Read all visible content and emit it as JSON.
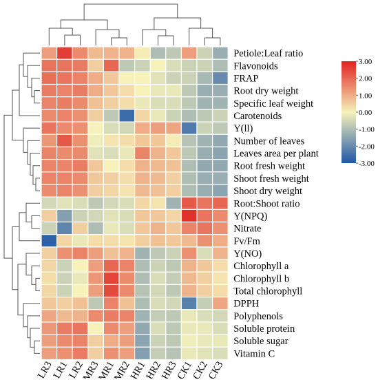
{
  "chart_data": {
    "type": "heatmap",
    "columns": [
      "LR3",
      "LR1",
      "LR2",
      "MR3",
      "MR1",
      "MR2",
      "HR1",
      "HR2",
      "HR3",
      "CK1",
      "CK2",
      "CK3"
    ],
    "rows": [
      "Petiole:Leaf ratio",
      "Flavonoids",
      "FRAP",
      "Root dry weight",
      "Specific leaf weight",
      "Carotenoids",
      "Y(ll)",
      "Number of leaves",
      "Leaves area per plant",
      "Root fresh weight",
      "Shoot fresh weight",
      "Shoot dry weight",
      "Root:Shoot ratio",
      "Y(NPQ)",
      "Nitrate",
      "Fv/Fm",
      "Y(NO)",
      "Chlorophyll a",
      "Chlorophyll b",
      "Total chlorophyll",
      "DPPH",
      "Polyphenols",
      "Soluble protein",
      "Soluble sugar",
      "Vitamin C"
    ],
    "values": [
      [
        1.2,
        2.6,
        1.5,
        0.8,
        0.9,
        0.9,
        0.1,
        -1.0,
        -0.8,
        1.2,
        -0.6,
        -1.3
      ],
      [
        1.8,
        1.8,
        1.7,
        0.5,
        2.0,
        -0.8,
        -0.6,
        0.0,
        -0.4,
        -0.6,
        -0.6,
        -1.0
      ],
      [
        1.9,
        1.8,
        1.6,
        1.0,
        0.6,
        0.0,
        0.0,
        -0.3,
        -0.6,
        -0.6,
        -1.1,
        -2.0
      ],
      [
        1.7,
        1.6,
        1.7,
        1.0,
        0.6,
        0.3,
        0.0,
        -0.2,
        -0.2,
        -0.8,
        -1.3,
        -1.3
      ],
      [
        1.6,
        1.7,
        1.5,
        0.7,
        0.5,
        0.3,
        -0.2,
        -0.4,
        -0.4,
        -0.8,
        -1.2,
        -1.2
      ],
      [
        1.5,
        1.6,
        1.4,
        0.5,
        -0.8,
        -2.6,
        0.4,
        -0.2,
        -0.6,
        -1.0,
        -0.8,
        -0.6
      ],
      [
        1.8,
        1.5,
        1.4,
        0.0,
        -0.4,
        -0.5,
        1.0,
        1.2,
        1.1,
        -2.3,
        -0.6,
        -0.8
      ],
      [
        1.3,
        2.2,
        1.4,
        -0.1,
        0.2,
        0.3,
        0.6,
        0.6,
        0.1,
        -0.9,
        -1.2,
        -1.4
      ],
      [
        1.6,
        1.5,
        1.5,
        -0.3,
        -0.4,
        -0.2,
        1.6,
        0.9,
        0.6,
        -0.8,
        -1.3,
        -1.5
      ],
      [
        1.6,
        1.6,
        1.7,
        0.6,
        0.0,
        0.3,
        0.9,
        0.8,
        0.7,
        -1.0,
        -1.4,
        -1.4
      ],
      [
        1.6,
        1.6,
        1.5,
        0.6,
        0.5,
        0.3,
        0.9,
        0.8,
        0.5,
        -1.0,
        -1.3,
        -1.3
      ],
      [
        1.5,
        1.6,
        1.4,
        0.5,
        0.4,
        0.2,
        0.8,
        0.7,
        0.5,
        -1.0,
        -1.3,
        -1.5
      ],
      [
        -0.5,
        -0.3,
        -0.4,
        -0.8,
        -0.5,
        -0.4,
        0.4,
        0.2,
        -1.2,
        2.2,
        1.8,
        2.0
      ],
      [
        0.5,
        -1.6,
        -0.6,
        -0.5,
        -0.3,
        -0.4,
        0.6,
        0.6,
        0.4,
        2.8,
        1.8,
        1.5
      ],
      [
        -0.6,
        -2.1,
        0.5,
        -1.0,
        -0.2,
        -0.4,
        0.6,
        0.9,
        0.6,
        1.6,
        1.8,
        1.4
      ],
      [
        -2.8,
        0.4,
        -0.2,
        0.3,
        0.3,
        0.2,
        0.5,
        0.7,
        0.6,
        0.8,
        1.4,
        1.0
      ],
      [
        0.5,
        1.4,
        1.6,
        1.2,
        0.7,
        0.9,
        -1.2,
        -0.8,
        -0.6,
        1.4,
        -0.4,
        0.9
      ],
      [
        0.4,
        -0.6,
        0.0,
        1.2,
        2.0,
        1.6,
        -1.0,
        -0.6,
        -0.8,
        0.9,
        0.6,
        0.3
      ],
      [
        0.3,
        -0.6,
        -0.2,
        1.3,
        2.5,
        1.5,
        -1.0,
        -0.4,
        -0.7,
        0.8,
        0.5,
        0.2
      ],
      [
        0.4,
        -0.6,
        0.0,
        1.2,
        2.4,
        1.5,
        -0.9,
        -0.5,
        -0.8,
        0.9,
        0.5,
        0.3
      ],
      [
        0.6,
        0.5,
        0.7,
        -0.8,
        1.6,
        0.7,
        -1.0,
        -0.4,
        -0.5,
        -2.2,
        -0.7,
        1.1
      ],
      [
        1.1,
        0.8,
        0.9,
        1.5,
        1.7,
        1.6,
        -1.2,
        -0.7,
        -0.8,
        -0.2,
        -0.4,
        -0.5
      ],
      [
        1.3,
        1.7,
        1.8,
        0.0,
        1.5,
        1.2,
        -1.4,
        -0.4,
        -0.8,
        -0.2,
        -0.2,
        -0.4
      ],
      [
        1.2,
        1.5,
        1.6,
        0.5,
        1.0,
        1.2,
        -1.5,
        -0.6,
        -0.8,
        -0.1,
        -0.2,
        -0.2
      ],
      [
        1.2,
        1.4,
        1.7,
        0.5,
        1.4,
        1.2,
        -1.6,
        -0.7,
        -0.9,
        -0.2,
        -0.3,
        -0.4
      ]
    ],
    "colorbar": {
      "range": [
        -3,
        3
      ],
      "ticks": [
        "3.00",
        "2.00",
        "1.00",
        "0.00",
        "-1.00",
        "-2.00",
        "-3.00"
      ]
    },
    "colors": [
      "#1f56a8",
      "#f6f2ba",
      "#e02120"
    ],
    "column_dendrogram": true,
    "row_dendrogram": true
  }
}
